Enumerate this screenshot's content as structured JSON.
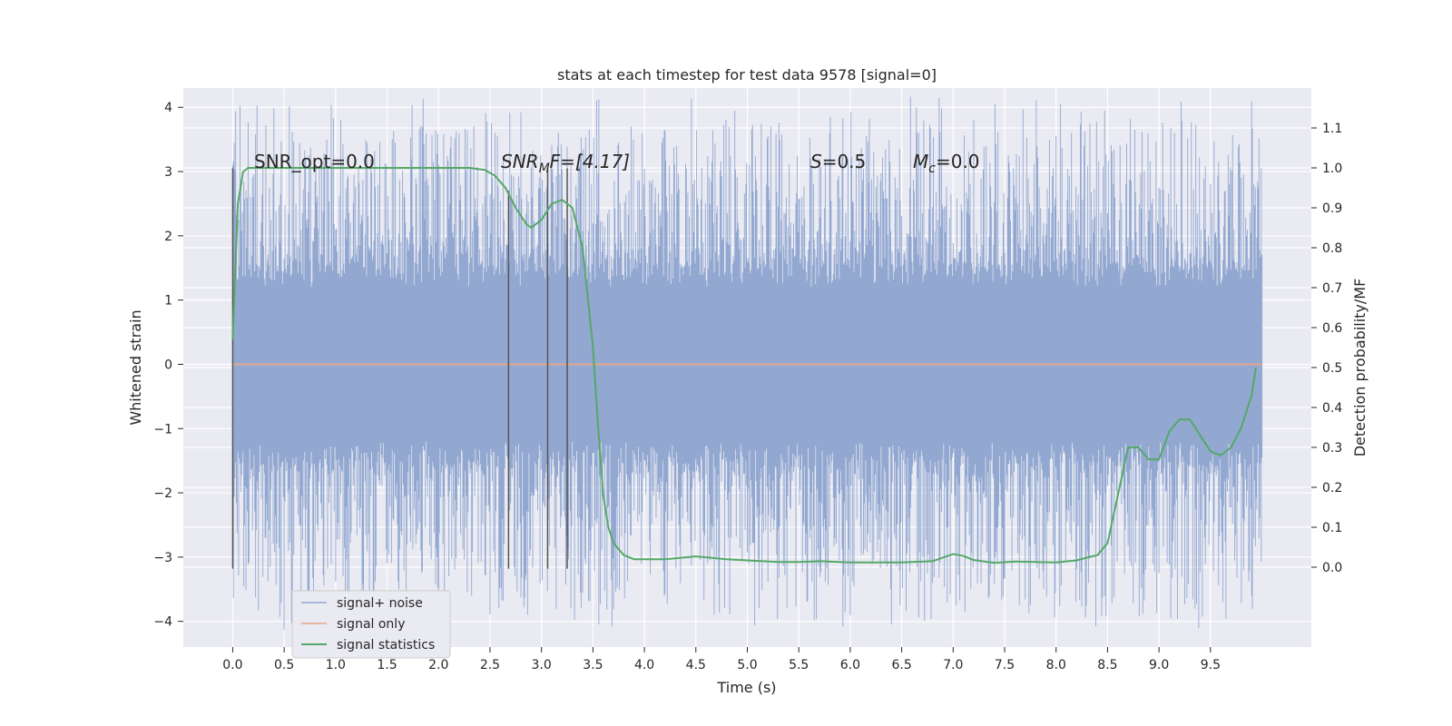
{
  "chart_data": {
    "type": "line",
    "title": "stats at each timestep for test data 9578 [signal=0]",
    "xlabel": "Time (s)",
    "ylabel_left": "Whitened strain",
    "ylabel_right": "Detection probability/MF",
    "xlim": [
      -0.48,
      10.48
    ],
    "ylim_left": [
      -4.4,
      4.3
    ],
    "ylim_right": [
      -0.2,
      1.2
    ],
    "x_ticks": [
      "0.0",
      "0.5",
      "1.0",
      "1.5",
      "2.0",
      "2.5",
      "3.0",
      "3.5",
      "4.0",
      "4.5",
      "5.0",
      "5.5",
      "6.0",
      "6.5",
      "7.0",
      "7.5",
      "8.0",
      "8.5",
      "9.0",
      "9.5"
    ],
    "x_tick_values": [
      0,
      0.5,
      1,
      1.5,
      2,
      2.5,
      3,
      3.5,
      4,
      4.5,
      5,
      5.5,
      6,
      6.5,
      7,
      7.5,
      8,
      8.5,
      9,
      9.5
    ],
    "y_left_ticks": [
      "4",
      "3",
      "2",
      "1",
      "0",
      "−1",
      "−2",
      "−3",
      "−4"
    ],
    "y_left_tick_values": [
      4,
      3,
      2,
      1,
      0,
      -1,
      -2,
      -3,
      -4
    ],
    "y_right_ticks": [
      "1.1",
      "1.0",
      "0.9",
      "0.8",
      "0.7",
      "0.6",
      "0.5",
      "0.4",
      "0.3",
      "0.2",
      "0.1",
      "0.0"
    ],
    "y_right_tick_values": [
      1.1,
      1.0,
      0.9,
      0.8,
      0.7,
      0.6,
      0.5,
      0.4,
      0.3,
      0.2,
      0.1,
      0.0
    ],
    "grid": true,
    "legend_placement": "lower-left",
    "annotations": {
      "snr_opt": "SNR_opt=0.0",
      "snr_mf_prefix": "SNR",
      "snr_mf_sub": "M",
      "snr_mf_suffix": "F=[4.17]",
      "s_prefix": "S",
      "s_suffix": "=0.5",
      "mc_prefix": "M",
      "mc_sub": "c",
      "mc_suffix": "=0.0"
    },
    "vertical_markers": [
      {
        "x": 0.0,
        "ymin": -3.18,
        "ymax": 3.05
      },
      {
        "x": 2.68,
        "ymin": -3.18,
        "ymax": 2.7
      },
      {
        "x": 3.06,
        "ymin": -3.18,
        "ymax": 3.05
      },
      {
        "x": 3.25,
        "ymin": -3.18,
        "ymax": 3.05
      }
    ],
    "series": [
      {
        "name": "signal+ noise",
        "color": "#92a8d1",
        "kind": "noise",
        "x_range": [
          0,
          10
        ],
        "core_amplitude": 1.2
      },
      {
        "name": "signal only",
        "color": "#e8a58c",
        "x": [
          0,
          10
        ],
        "y": [
          0,
          0
        ]
      },
      {
        "name": "signal statistics",
        "color": "#55a868",
        "axis": "right",
        "x": [
          0.0,
          0.05,
          0.1,
          0.15,
          0.2,
          0.3,
          0.5,
          1.0,
          1.5,
          2.0,
          2.3,
          2.45,
          2.55,
          2.65,
          2.75,
          2.85,
          2.9,
          3.0,
          3.1,
          3.2,
          3.3,
          3.4,
          3.5,
          3.55,
          3.6,
          3.65,
          3.7,
          3.8,
          3.9,
          4.0,
          4.2,
          4.5,
          4.8,
          5.0,
          5.3,
          5.5,
          5.7,
          6.0,
          6.5,
          6.8,
          6.9,
          7.0,
          7.1,
          7.2,
          7.4,
          7.6,
          7.8,
          8.0,
          8.2,
          8.3,
          8.4,
          8.5,
          8.6,
          8.7,
          8.8,
          8.9,
          9.0,
          9.1,
          9.2,
          9.3,
          9.4,
          9.5,
          9.6,
          9.7,
          9.8,
          9.9,
          9.94
        ],
        "y": [
          0.57,
          0.91,
          0.99,
          1.0,
          1.0,
          1.0,
          1.0,
          1.0,
          1.0,
          1.0,
          1.0,
          0.995,
          0.98,
          0.95,
          0.9,
          0.86,
          0.85,
          0.87,
          0.91,
          0.92,
          0.9,
          0.8,
          0.55,
          0.35,
          0.18,
          0.1,
          0.06,
          0.03,
          0.02,
          0.02,
          0.02,
          0.027,
          0.02,
          0.017,
          0.013,
          0.013,
          0.015,
          0.012,
          0.012,
          0.015,
          0.024,
          0.033,
          0.028,
          0.018,
          0.011,
          0.014,
          0.013,
          0.012,
          0.017,
          0.024,
          0.03,
          0.06,
          0.18,
          0.3,
          0.3,
          0.27,
          0.27,
          0.34,
          0.37,
          0.37,
          0.33,
          0.29,
          0.28,
          0.3,
          0.35,
          0.43,
          0.5
        ]
      }
    ]
  }
}
